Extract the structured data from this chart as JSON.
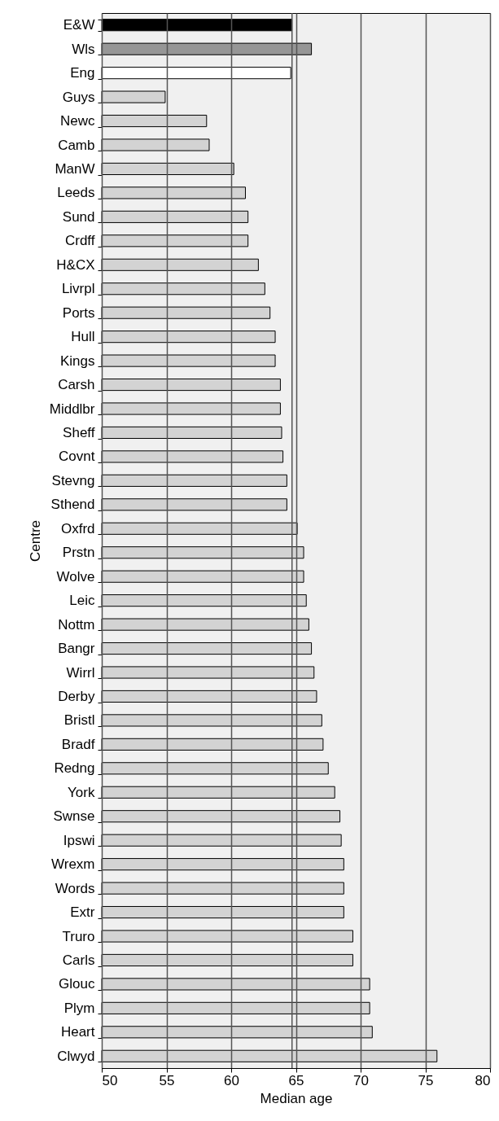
{
  "chart_data": {
    "type": "bar",
    "orientation": "horizontal",
    "xlabel": "Median age",
    "ylabel": "Centre",
    "categories": [
      "E&W",
      "Wls",
      "Eng",
      "Guys",
      "Newc",
      "Camb",
      "ManW",
      "Leeds",
      "Sund",
      "Crdff",
      "H&CX",
      "Livrpl",
      "Ports",
      "Hull",
      "Kings",
      "Carsh",
      "Middlbr",
      "Sheff",
      "Covnt",
      "Stevng",
      "Sthend",
      "Oxfrd",
      "Prstn",
      "Wolve",
      "Leic",
      "Nottm",
      "Bangr",
      "Wirrl",
      "Derby",
      "Bristl",
      "Bradf",
      "Redng",
      "York",
      "Swnse",
      "Ipswi",
      "Wrexm",
      "Words",
      "Extr",
      "Truro",
      "Carls",
      "Glouc",
      "Plym",
      "Heart",
      "Clwyd"
    ],
    "values": [
      64.7,
      66.2,
      64.6,
      54.9,
      58.1,
      58.3,
      60.2,
      61.1,
      61.3,
      61.3,
      62.1,
      62.6,
      63.0,
      63.4,
      63.4,
      63.8,
      63.8,
      63.9,
      64.0,
      64.3,
      64.3,
      65.1,
      65.6,
      65.6,
      65.8,
      66.0,
      66.2,
      66.4,
      66.6,
      67.0,
      67.1,
      67.5,
      68.0,
      68.4,
      68.5,
      68.7,
      68.7,
      68.7,
      69.4,
      69.4,
      70.7,
      70.7,
      70.9,
      75.9
    ],
    "colors": [
      "#000000",
      "#969696",
      "#ffffff",
      "#d3d3d3",
      "#d3d3d3",
      "#d3d3d3",
      "#d3d3d3",
      "#d3d3d3",
      "#d3d3d3",
      "#d3d3d3",
      "#d3d3d3",
      "#d3d3d3",
      "#d3d3d3",
      "#d3d3d3",
      "#d3d3d3",
      "#d3d3d3",
      "#d3d3d3",
      "#d3d3d3",
      "#d3d3d3",
      "#d3d3d3",
      "#d3d3d3",
      "#d3d3d3",
      "#d3d3d3",
      "#d3d3d3",
      "#d3d3d3",
      "#d3d3d3",
      "#d3d3d3",
      "#d3d3d3",
      "#d3d3d3",
      "#d3d3d3",
      "#d3d3d3",
      "#d3d3d3",
      "#d3d3d3",
      "#d3d3d3",
      "#d3d3d3",
      "#d3d3d3",
      "#d3d3d3",
      "#d3d3d3",
      "#d3d3d3",
      "#d3d3d3",
      "#d3d3d3",
      "#d3d3d3",
      "#d3d3d3",
      "#d3d3d3"
    ],
    "xlim": [
      50,
      80
    ],
    "xticks": [
      50,
      55,
      60,
      65,
      70,
      75,
      80
    ],
    "grid": "x",
    "ref_lines": [
      {
        "axis": "x",
        "value": 64.7,
        "color": "#555555"
      }
    ]
  }
}
